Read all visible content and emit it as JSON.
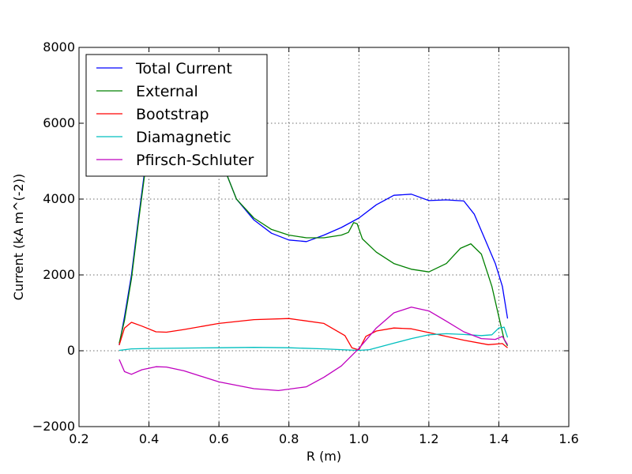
{
  "chart_data": {
    "type": "line",
    "title": "",
    "xlabel": "R (m)",
    "ylabel": "Current (kA m^(-2))",
    "xlim": [
      0.2,
      1.6
    ],
    "ylim": [
      -2000,
      8000
    ],
    "xticks": [
      0.2,
      0.4,
      0.6,
      0.8,
      1.0,
      1.2,
      1.4,
      1.6
    ],
    "yticks": [
      -2000,
      0,
      2000,
      4000,
      6000,
      8000
    ],
    "xtick_labels": [
      "0.2",
      "0.4",
      "0.6",
      "0.8",
      "1.0",
      "1.2",
      "1.4",
      "1.6"
    ],
    "ytick_labels": [
      "−2000",
      "0",
      "2000",
      "4000",
      "6000",
      "8000"
    ],
    "grid": true,
    "legend_position": "top-left",
    "series": [
      {
        "name": "Total Current",
        "color": "#0000ff",
        "x": [
          0.315,
          0.33,
          0.35,
          0.37,
          0.39,
          0.41,
          0.45,
          0.5,
          0.55,
          0.6,
          0.62,
          0.65,
          0.7,
          0.75,
          0.8,
          0.85,
          0.9,
          0.95,
          1.0,
          1.05,
          1.1,
          1.15,
          1.2,
          1.25,
          1.3,
          1.33,
          1.36,
          1.39,
          1.41,
          1.425
        ],
        "y": [
          150,
          900,
          2000,
          3500,
          4900,
          5700,
          6500,
          6900,
          6400,
          5200,
          4700,
          4000,
          3450,
          3100,
          2920,
          2880,
          3050,
          3250,
          3500,
          3850,
          4100,
          4130,
          3960,
          3980,
          3950,
          3600,
          2950,
          2300,
          1700,
          850
        ]
      },
      {
        "name": "External",
        "color": "#008000",
        "x": [
          0.315,
          0.33,
          0.35,
          0.37,
          0.39,
          0.41,
          0.45,
          0.5,
          0.55,
          0.6,
          0.62,
          0.65,
          0.7,
          0.75,
          0.8,
          0.85,
          0.9,
          0.95,
          0.97,
          0.985,
          0.995,
          1.01,
          1.05,
          1.1,
          1.15,
          1.2,
          1.25,
          1.29,
          1.32,
          1.35,
          1.38,
          1.4,
          1.415,
          1.425
        ],
        "y": [
          200,
          800,
          1900,
          3400,
          4800,
          5600,
          6400,
          6800,
          6300,
          5200,
          4700,
          4000,
          3500,
          3200,
          3050,
          2980,
          2980,
          3050,
          3120,
          3380,
          3350,
          2950,
          2600,
          2300,
          2150,
          2080,
          2300,
          2700,
          2820,
          2550,
          1700,
          900,
          300,
          130
        ]
      },
      {
        "name": "Bootstrap",
        "color": "#ff0000",
        "x": [
          0.315,
          0.33,
          0.35,
          0.38,
          0.42,
          0.45,
          0.5,
          0.6,
          0.7,
          0.8,
          0.9,
          0.96,
          0.98,
          1.0,
          1.02,
          1.05,
          1.1,
          1.15,
          1.2,
          1.3,
          1.37,
          1.41,
          1.425
        ],
        "y": [
          150,
          600,
          750,
          650,
          500,
          490,
          560,
          720,
          820,
          850,
          720,
          400,
          80,
          20,
          380,
          520,
          600,
          580,
          480,
          280,
          160,
          190,
          80
        ]
      },
      {
        "name": "Diamagnetic",
        "color": "#00bfbf",
        "x": [
          0.315,
          0.35,
          0.4,
          0.5,
          0.6,
          0.7,
          0.8,
          0.9,
          0.95,
          1.0,
          1.03,
          1.1,
          1.15,
          1.2,
          1.25,
          1.3,
          1.35,
          1.38,
          1.4,
          1.415,
          1.425
        ],
        "y": [
          10,
          50,
          60,
          70,
          80,
          90,
          80,
          50,
          30,
          10,
          30,
          200,
          320,
          420,
          450,
          430,
          400,
          420,
          600,
          620,
          350
        ]
      },
      {
        "name": "Pfirsch-Schluter",
        "color": "#bf00bf",
        "x": [
          0.315,
          0.33,
          0.35,
          0.38,
          0.42,
          0.45,
          0.5,
          0.6,
          0.7,
          0.77,
          0.85,
          0.9,
          0.95,
          1.0,
          1.05,
          1.1,
          1.15,
          1.2,
          1.25,
          1.3,
          1.35,
          1.39,
          1.41,
          1.425
        ],
        "y": [
          -230,
          -550,
          -620,
          -500,
          -420,
          -430,
          -530,
          -820,
          -1000,
          -1050,
          -950,
          -700,
          -400,
          60,
          600,
          1000,
          1150,
          1050,
          780,
          500,
          320,
          300,
          380,
          160
        ]
      }
    ]
  }
}
